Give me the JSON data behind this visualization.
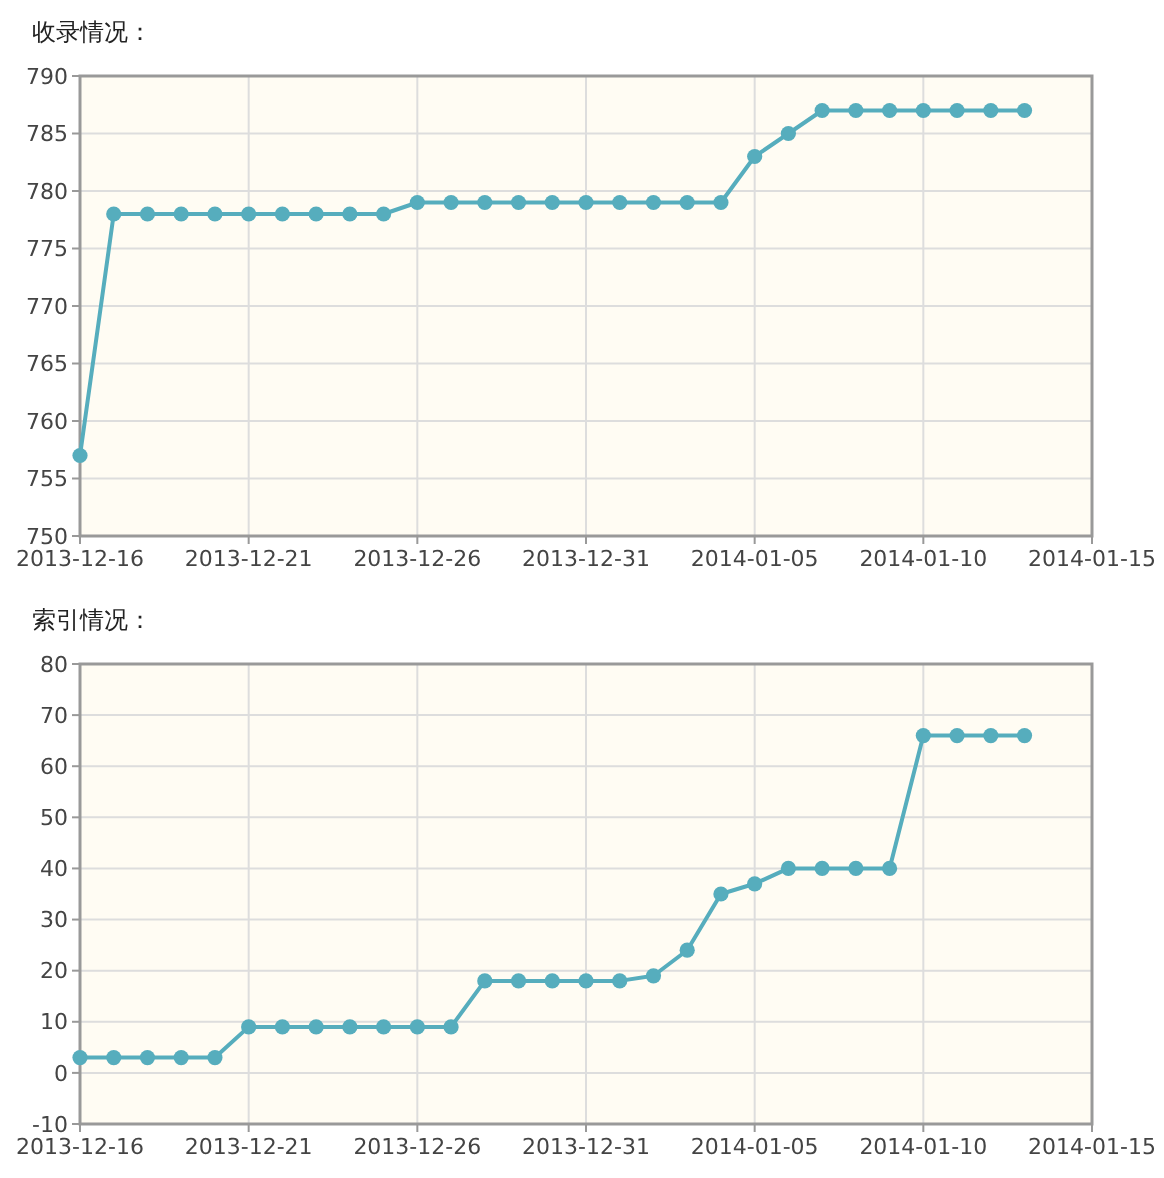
{
  "chart_data": [
    {
      "type": "line",
      "title": "收录情况：",
      "x": [
        "2013-12-16",
        "2013-12-17",
        "2013-12-18",
        "2013-12-19",
        "2013-12-20",
        "2013-12-21",
        "2013-12-22",
        "2013-12-23",
        "2013-12-24",
        "2013-12-25",
        "2013-12-26",
        "2013-12-27",
        "2013-12-28",
        "2013-12-29",
        "2013-12-30",
        "2013-12-31",
        "2014-01-01",
        "2014-01-02",
        "2014-01-03",
        "2014-01-04",
        "2014-01-05",
        "2014-01-06",
        "2014-01-07",
        "2014-01-08",
        "2014-01-09",
        "2014-01-10",
        "2014-01-11",
        "2014-01-12",
        "2014-01-13"
      ],
      "series": [
        {
          "color": "#56adbd",
          "values": [
            757,
            778,
            778,
            778,
            778,
            778,
            778,
            778,
            778,
            778,
            779,
            779,
            779,
            779,
            779,
            779,
            779,
            779,
            779,
            779,
            783,
            785,
            787,
            787,
            787,
            787,
            787,
            787,
            787
          ]
        }
      ],
      "xlim": [
        "2013-12-16",
        "2014-01-15"
      ],
      "xticks": [
        "2013-12-16",
        "2013-12-21",
        "2013-12-26",
        "2013-12-31",
        "2014-01-05",
        "2014-01-10",
        "2014-01-15"
      ],
      "ylim": [
        750,
        790
      ],
      "yticks": [
        750,
        755,
        760,
        765,
        770,
        775,
        780,
        785,
        790
      ],
      "grid": true,
      "marker": "circle",
      "line_style": "solid"
    },
    {
      "type": "line",
      "title": "索引情况：",
      "x": [
        "2013-12-16",
        "2013-12-17",
        "2013-12-18",
        "2013-12-19",
        "2013-12-20",
        "2013-12-21",
        "2013-12-22",
        "2013-12-23",
        "2013-12-24",
        "2013-12-25",
        "2013-12-26",
        "2013-12-27",
        "2013-12-28",
        "2013-12-29",
        "2013-12-30",
        "2013-12-31",
        "2014-01-01",
        "2014-01-02",
        "2014-01-03",
        "2014-01-04",
        "2014-01-05",
        "2014-01-06",
        "2014-01-07",
        "2014-01-08",
        "2014-01-09",
        "2014-01-10",
        "2014-01-11",
        "2014-01-12",
        "2014-01-13"
      ],
      "series": [
        {
          "color": "#56adbd",
          "values": [
            3,
            3,
            3,
            3,
            3,
            9,
            9,
            9,
            9,
            9,
            9,
            9,
            18,
            18,
            18,
            18,
            18,
            19,
            24,
            35,
            37,
            40,
            40,
            40,
            40,
            66,
            66,
            66,
            66
          ]
        }
      ],
      "xlim": [
        "2013-12-16",
        "2014-01-15"
      ],
      "xticks": [
        "2013-12-16",
        "2013-12-21",
        "2013-12-26",
        "2013-12-31",
        "2014-01-05",
        "2014-01-10",
        "2014-01-15"
      ],
      "ylim": [
        -10,
        80
      ],
      "yticks": [
        -10,
        0,
        10,
        20,
        30,
        40,
        50,
        60,
        70,
        80
      ],
      "grid": true,
      "marker": "circle",
      "line_style": "solid"
    }
  ]
}
